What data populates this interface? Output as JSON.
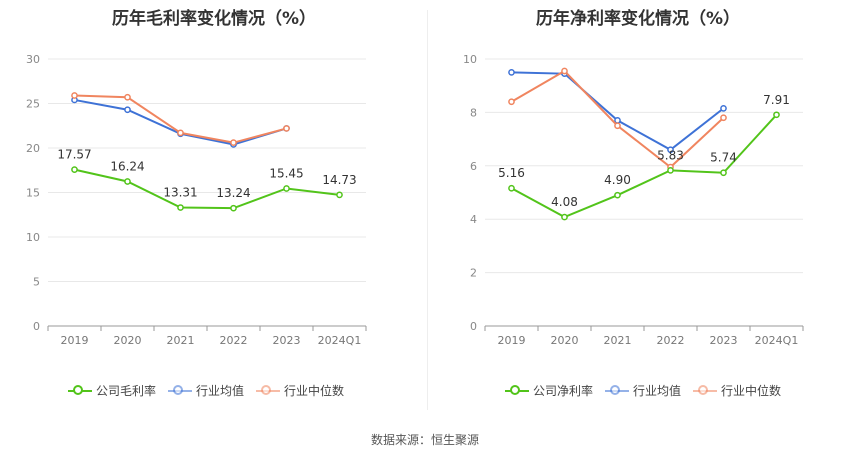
{
  "chart_data": [
    {
      "type": "line",
      "title": "历年毛利率变化情况（%）",
      "categories": [
        "2019",
        "2020",
        "2021",
        "2022",
        "2023",
        "2024Q1"
      ],
      "ylim": [
        0,
        30
      ],
      "yticks": [
        0,
        5,
        10,
        15,
        20,
        25,
        30
      ],
      "grid": true,
      "legend_position": "bottom",
      "series": [
        {
          "name": "公司毛利率",
          "color": "#52c41a",
          "labeled": true,
          "values": [
            17.57,
            16.24,
            13.31,
            13.24,
            15.45,
            14.73
          ],
          "labels": [
            "17.57",
            "16.24",
            "13.31",
            "13.24",
            "15.45",
            "14.73"
          ]
        },
        {
          "name": "行业均值",
          "color": "#3e72d6",
          "labeled": false,
          "values": [
            25.4,
            24.3,
            21.6,
            20.4,
            22.2,
            null
          ]
        },
        {
          "name": "行业中位数",
          "color": "#f0855f",
          "labeled": false,
          "values": [
            25.9,
            25.7,
            21.7,
            20.6,
            22.2,
            null
          ]
        }
      ]
    },
    {
      "type": "line",
      "title": "历年净利率变化情况（%）",
      "categories": [
        "2019",
        "2020",
        "2021",
        "2022",
        "2023",
        "2024Q1"
      ],
      "ylim": [
        0,
        10
      ],
      "yticks": [
        0,
        2,
        4,
        6,
        8,
        10
      ],
      "grid": true,
      "legend_position": "bottom",
      "series": [
        {
          "name": "公司净利率",
          "color": "#52c41a",
          "labeled": true,
          "values": [
            5.16,
            4.08,
            4.9,
            5.83,
            5.74,
            7.91
          ],
          "labels": [
            "5.16",
            "4.08",
            "4.90",
            "5.83",
            "5.74",
            "7.91"
          ]
        },
        {
          "name": "行业均值",
          "color": "#3e72d6",
          "labeled": false,
          "values": [
            9.5,
            9.45,
            7.7,
            6.6,
            8.15,
            null
          ]
        },
        {
          "name": "行业中位数",
          "color": "#f0855f",
          "labeled": false,
          "values": [
            8.4,
            9.55,
            7.5,
            5.95,
            7.8,
            null
          ]
        }
      ]
    }
  ],
  "source_text": "数据来源：恒生聚源"
}
